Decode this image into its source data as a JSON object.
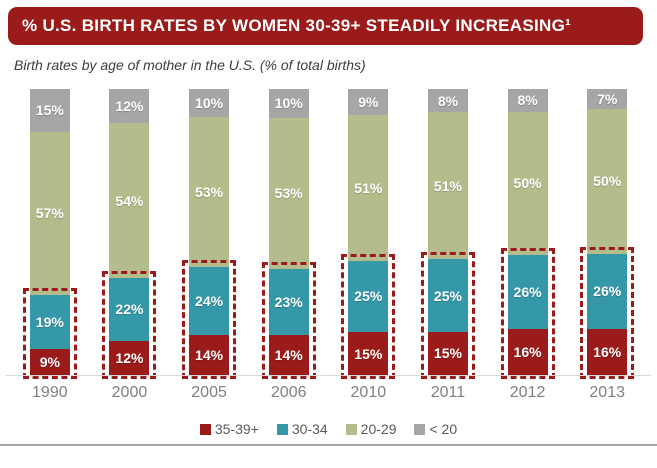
{
  "header": {
    "title": "% U.S. BIRTH RATES BY WOMEN 30-39+ STEADILY INCREASING¹",
    "banner_color": "#9b1b1b",
    "subtitle": "Birth rates by age of mother in the U.S. (% of total births)"
  },
  "chart_data": {
    "type": "bar",
    "stacked": true,
    "title": "% U.S. BIRTH RATES BY WOMEN 30-39+ STEADILY INCREASING¹",
    "subtitle": "Birth rates by age of mother in the U.S. (% of total births)",
    "categories": [
      "1990",
      "2000",
      "2005",
      "2006",
      "2010",
      "2011",
      "2012",
      "2013"
    ],
    "series": [
      {
        "name": "35-39+",
        "color": "#9b1b1b",
        "values": [
          9,
          12,
          14,
          14,
          15,
          15,
          16,
          16
        ]
      },
      {
        "name": "30-34",
        "color": "#3598a9",
        "values": [
          19,
          22,
          24,
          23,
          25,
          25,
          26,
          26
        ]
      },
      {
        "name": "20-29",
        "color": "#b4bc8c",
        "values": [
          57,
          54,
          53,
          53,
          51,
          51,
          50,
          50
        ]
      },
      {
        "name": "< 20",
        "color": "#a6a6a6",
        "values": [
          15,
          12,
          10,
          10,
          9,
          8,
          8,
          7
        ]
      }
    ],
    "value_label_format": "{v}%",
    "highlight": {
      "series": [
        "35-39+",
        "30-34"
      ],
      "style": "dashed-outline",
      "color": "#9b1b1b"
    },
    "xlabel": "",
    "ylabel": "",
    "ylim": [
      0,
      100
    ],
    "grid": false,
    "legend_position": "bottom"
  }
}
